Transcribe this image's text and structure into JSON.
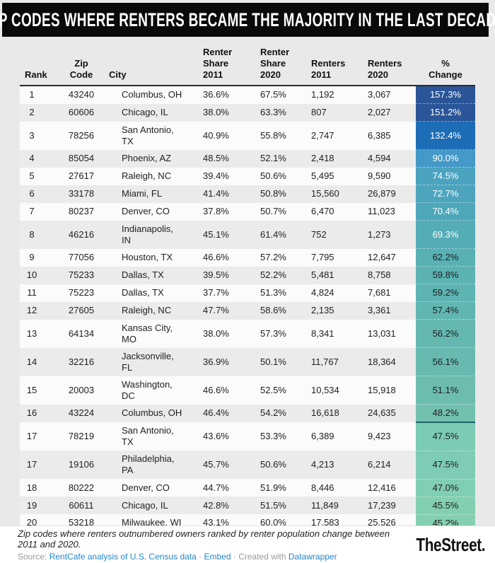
{
  "title": "ZIP CODES WHERE RENTERS BECAME THE MAJORITY IN THE LAST DECADE",
  "chart_data": {
    "type": "table",
    "title": "ZIP CODES WHERE RENTERS BECAME THE MAJORITY IN THE LAST DECADE",
    "columns": [
      "Rank",
      "Zip\nCode",
      "City",
      "Renter\nShare\n2011",
      "Renter\nShare\n2020",
      "Renters\n2011",
      "Renters\n2020",
      "%\nChange"
    ],
    "heatmap_column": "% Change",
    "rows": [
      {
        "rank": "1",
        "zip_code": "43240",
        "city": "Columbus, OH",
        "renter_share_2011": "36.6%",
        "renter_share_2020": "67.5%",
        "renters_2011": "1,192",
        "renters_2020": "3,067",
        "pct_change": "157.3%",
        "cell_bg": "#2a5598",
        "cell_fg": "#ffffff",
        "divider_below": false
      },
      {
        "rank": "2",
        "zip_code": "60606",
        "city": "Chicago, IL",
        "renter_share_2011": "38.0%",
        "renter_share_2020": "63.3%",
        "renters_2011": "807",
        "renters_2020": "2,027",
        "pct_change": "151.2%",
        "cell_bg": "#2a5598",
        "cell_fg": "#ffffff",
        "divider_below": false
      },
      {
        "rank": "3",
        "zip_code": "78256",
        "city": "San Antonio,\nTX",
        "renter_share_2011": "40.9%",
        "renter_share_2020": "55.8%",
        "renters_2011": "2,747",
        "renters_2020": "6,385",
        "pct_change": "132.4%",
        "cell_bg": "#1c6db6",
        "cell_fg": "#ffffff",
        "divider_below": false
      },
      {
        "rank": "4",
        "zip_code": "85054",
        "city": "Phoenix, AZ",
        "renter_share_2011": "48.5%",
        "renter_share_2020": "52.1%",
        "renters_2011": "2,418",
        "renters_2020": "4,594",
        "pct_change": "90.0%",
        "cell_bg": "#4599c8",
        "cell_fg": "#ffffff",
        "divider_below": false
      },
      {
        "rank": "5",
        "zip_code": "27617",
        "city": "Raleigh, NC",
        "renter_share_2011": "39.4%",
        "renter_share_2020": "50.6%",
        "renters_2011": "5,495",
        "renters_2020": "9,590",
        "pct_change": "74.5%",
        "cell_bg": "#4ba3c0",
        "cell_fg": "#ffffff",
        "divider_below": false
      },
      {
        "rank": "6",
        "zip_code": "33178",
        "city": "Miami, FL",
        "renter_share_2011": "41.4%",
        "renter_share_2020": "50.8%",
        "renters_2011": "15,560",
        "renters_2020": "26,879",
        "pct_change": "72.7%",
        "cell_bg": "#4da5bd",
        "cell_fg": "#ffffff",
        "divider_below": false
      },
      {
        "rank": "7",
        "zip_code": "80237",
        "city": "Denver, CO",
        "renter_share_2011": "37.8%",
        "renter_share_2020": "50.7%",
        "renters_2011": "6,470",
        "renters_2020": "11,023",
        "pct_change": "70.4%",
        "cell_bg": "#4fa8ba",
        "cell_fg": "#ffffff",
        "divider_below": false
      },
      {
        "rank": "8",
        "zip_code": "46216",
        "city": "Indianapolis,\nIN",
        "renter_share_2011": "45.1%",
        "renter_share_2020": "61.4%",
        "renters_2011": "752",
        "renters_2020": "1,273",
        "pct_change": "69.3%",
        "cell_bg": "#53acb6",
        "cell_fg": "#ffffff",
        "divider_below": false
      },
      {
        "rank": "9",
        "zip_code": "77056",
        "city": "Houston, TX",
        "renter_share_2011": "46.6%",
        "renter_share_2020": "57.2%",
        "renters_2011": "7,795",
        "renters_2020": "12,647",
        "pct_change": "62.2%",
        "cell_bg": "#59b1b4",
        "cell_fg": "#1d1d1d",
        "divider_below": false
      },
      {
        "rank": "10",
        "zip_code": "75233",
        "city": "Dallas, TX",
        "renter_share_2011": "39.5%",
        "renter_share_2020": "52.2%",
        "renters_2011": "5,481",
        "renters_2020": "8,758",
        "pct_change": "59.8%",
        "cell_bg": "#5cb3b2",
        "cell_fg": "#1d1d1d",
        "divider_below": false
      },
      {
        "rank": "11",
        "zip_code": "75223",
        "city": "Dallas, TX",
        "renter_share_2011": "37.7%",
        "renter_share_2020": "51.3%",
        "renters_2011": "4,824",
        "renters_2020": "7,681",
        "pct_change": "59.2%",
        "cell_bg": "#5eb4b2",
        "cell_fg": "#1d1d1d",
        "divider_below": false
      },
      {
        "rank": "12",
        "zip_code": "27605",
        "city": "Raleigh, NC",
        "renter_share_2011": "47.7%",
        "renter_share_2020": "58.6%",
        "renters_2011": "2,135",
        "renters_2020": "3,361",
        "pct_change": "57.4%",
        "cell_bg": "#61b6b1",
        "cell_fg": "#1d1d1d",
        "divider_below": false
      },
      {
        "rank": "13",
        "zip_code": "64134",
        "city": "Kansas City,\nMO",
        "renter_share_2011": "38.0%",
        "renter_share_2020": "57.3%",
        "renters_2011": "8,341",
        "renters_2020": "13,031",
        "pct_change": "56.2%",
        "cell_bg": "#65b8b0",
        "cell_fg": "#1d1d1d",
        "divider_below": false
      },
      {
        "rank": "14",
        "zip_code": "32216",
        "city": "Jacksonville,\nFL",
        "renter_share_2011": "36.9%",
        "renter_share_2020": "50.1%",
        "renters_2011": "11,767",
        "renters_2020": "18,364",
        "pct_change": "56.1%",
        "cell_bg": "#68bab0",
        "cell_fg": "#1d1d1d",
        "divider_below": false
      },
      {
        "rank": "15",
        "zip_code": "20003",
        "city": "Washington,\nDC",
        "renter_share_2011": "46.6%",
        "renter_share_2020": "52.5%",
        "renters_2011": "10,534",
        "renters_2020": "15,918",
        "pct_change": "51.1%",
        "cell_bg": "#6dbdaf",
        "cell_fg": "#1d1d1d",
        "divider_below": false
      },
      {
        "rank": "16",
        "zip_code": "43224",
        "city": "Columbus, OH",
        "renter_share_2011": "46.4%",
        "renter_share_2020": "54.2%",
        "renters_2011": "16,618",
        "renters_2020": "24,635",
        "pct_change": "48.2%",
        "cell_bg": "#72c0ae",
        "cell_fg": "#1d1d1d",
        "divider_below": true
      },
      {
        "rank": "17",
        "zip_code": "78219",
        "city": "San Antonio,\nTX",
        "renter_share_2011": "43.6%",
        "renter_share_2020": "53.3%",
        "renters_2011": "6,389",
        "renters_2020": "9,423",
        "pct_change": "47.5%",
        "cell_bg": "#7ccbb5",
        "cell_fg": "#1d1d1d",
        "divider_below": false
      },
      {
        "rank": "17",
        "zip_code": "19106",
        "city": "Philadelphia,\nPA",
        "renter_share_2011": "45.7%",
        "renter_share_2020": "50.6%",
        "renters_2011": "4,213",
        "renters_2020": "6,214",
        "pct_change": "47.5%",
        "cell_bg": "#7eccb4",
        "cell_fg": "#1d1d1d",
        "divider_below": false
      },
      {
        "rank": "18",
        "zip_code": "80222",
        "city": "Denver, CO",
        "renter_share_2011": "44.7%",
        "renter_share_2020": "51.9%",
        "renters_2011": "8,446",
        "renters_2020": "12,416",
        "pct_change": "47.0%",
        "cell_bg": "#80ceb3",
        "cell_fg": "#1d1d1d",
        "divider_below": false
      },
      {
        "rank": "19",
        "zip_code": "60611",
        "city": "Chicago, IL",
        "renter_share_2011": "42.8%",
        "renter_share_2020": "51.5%",
        "renters_2011": "11,849",
        "renters_2020": "17,239",
        "pct_change": "45.5%",
        "cell_bg": "#82cfb2",
        "cell_fg": "#1d1d1d",
        "divider_below": false
      },
      {
        "rank": "20",
        "zip_code": "53218",
        "city": "Milwaukee, WI",
        "renter_share_2011": "43.1%",
        "renter_share_2020": "60.0%",
        "renters_2011": "17,583",
        "renters_2020": "25,526",
        "pct_change": "45.2%",
        "cell_bg": "#84d0b1",
        "cell_fg": "#1d1d1d",
        "divider_below": false
      }
    ]
  },
  "footer": {
    "note": "Zip codes where renters outnumbered owners ranked by renter population change between 2011 and 2020.",
    "source_prefix": "Source: ",
    "source_link": "RentCafe analysis of U.S. Census data",
    "sep1": " · ",
    "embed_link": "Embed",
    "sep2": " · ",
    "created_prefix": "Created with ",
    "datawrapper_link": "Datawrapper",
    "logo": "TheStreet."
  },
  "colors": {
    "banner_bg": "#0a0a0a",
    "banner_fg": "#ffffff",
    "page_bg": "#e9e9e9",
    "row_odd": "#fbfbfb",
    "row_even": "#ebebeb",
    "header_rule": "#2a2a2a",
    "link": "#2287d0",
    "footer_bg": "#ffffff",
    "threshold_divider": "#1d6066"
  }
}
